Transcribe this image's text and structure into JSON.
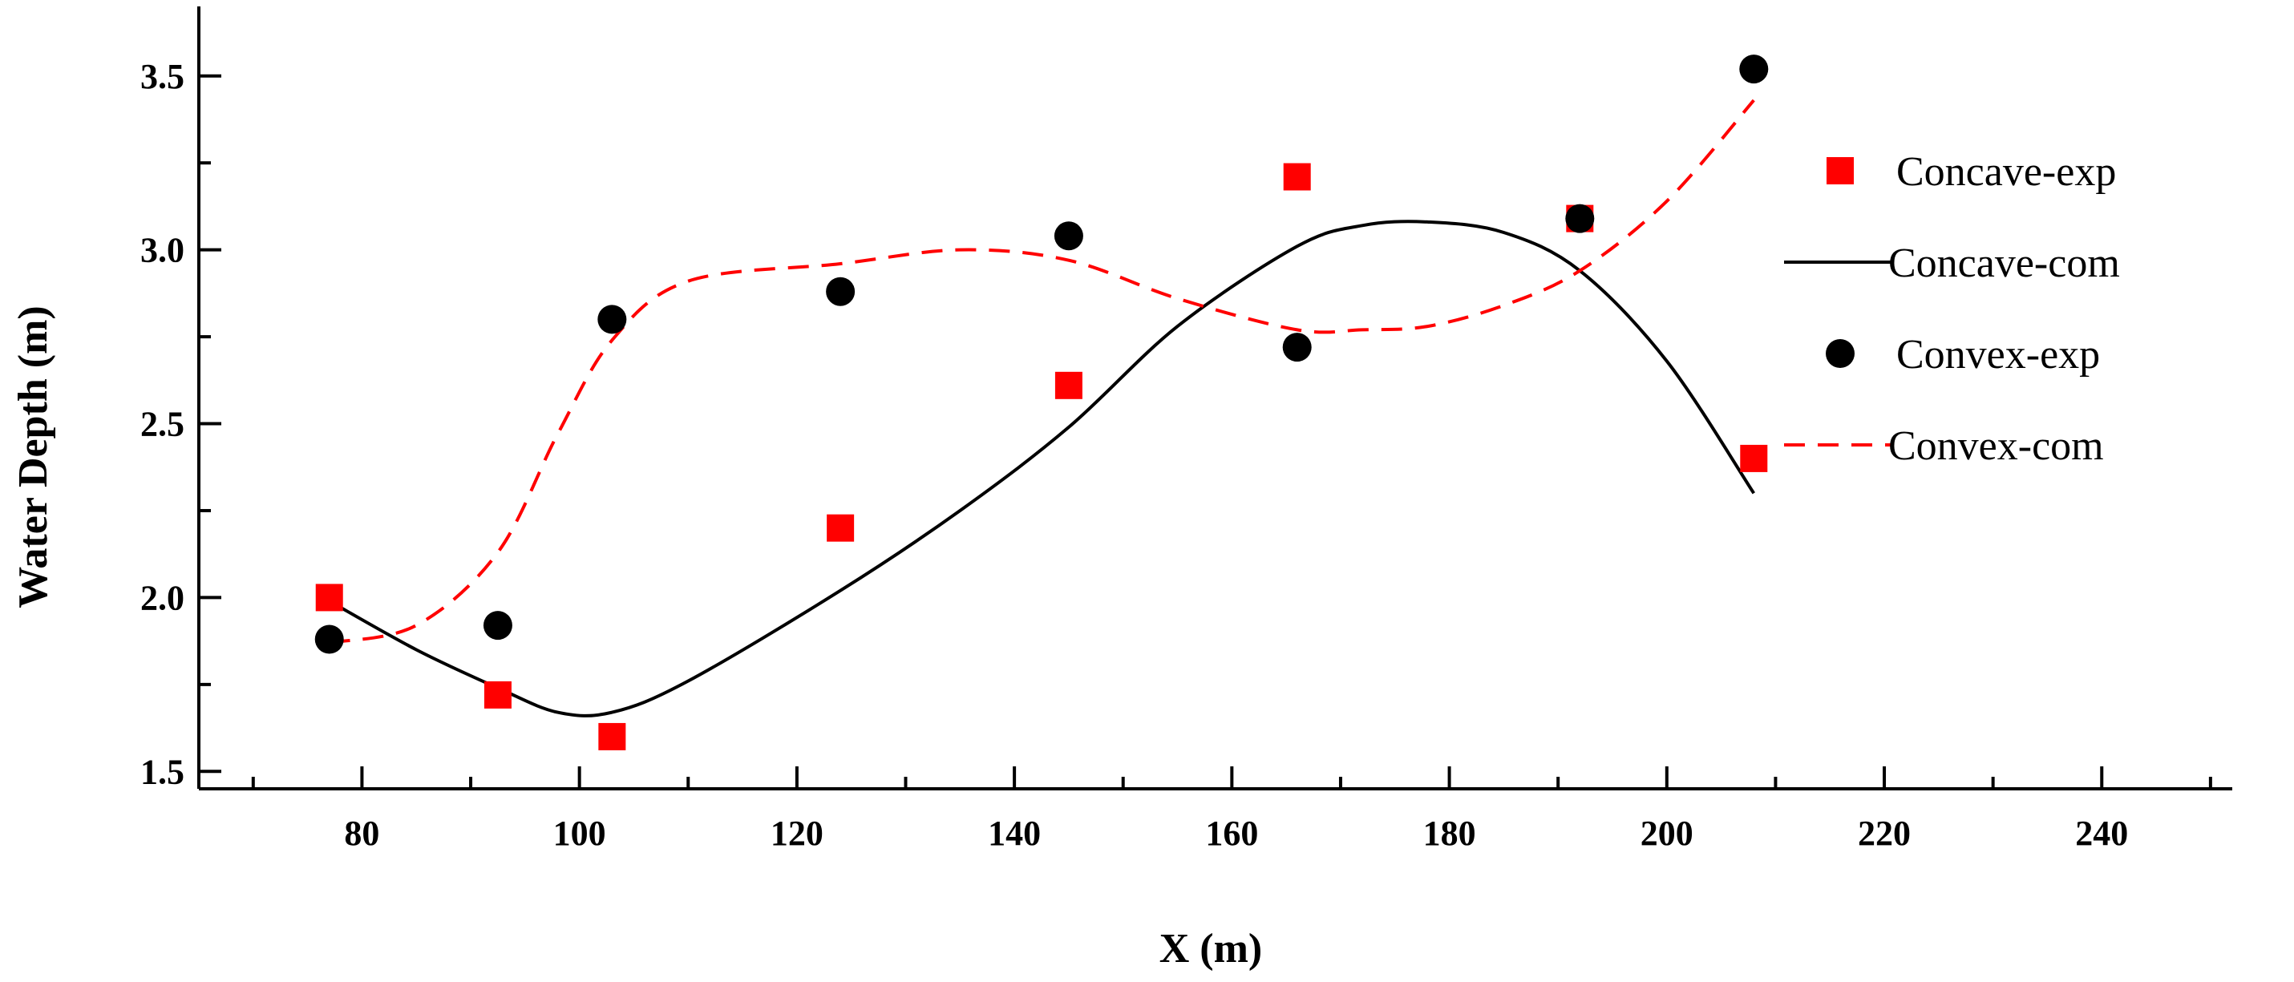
{
  "chart_data": {
    "type": "scatter",
    "title": "",
    "xlabel": "X (m)",
    "ylabel": "Water Depth (m)",
    "xlim": [
      65,
      252
    ],
    "ylim": [
      1.45,
      3.7
    ],
    "xticks": [
      80,
      100,
      120,
      140,
      160,
      180,
      200,
      220,
      240
    ],
    "xtick_labels": [
      "80",
      "100",
      "120",
      "140",
      "160",
      "180",
      "200",
      "220",
      "240"
    ],
    "x_minor_ticks": [
      70,
      90,
      110,
      130,
      150,
      170,
      190,
      210,
      230,
      250
    ],
    "yticks": [
      1.5,
      2.0,
      2.5,
      3.0,
      3.5
    ],
    "ytick_labels": [
      "1.5",
      "2.0",
      "2.5",
      "3.0",
      "3.5"
    ],
    "y_minor_ticks": [
      1.75,
      2.25,
      2.75,
      3.25
    ],
    "grid": false,
    "legend_position": "right",
    "colors": {
      "concave": "#ff0000",
      "convex_points": "#000000",
      "concave_line": "#000000",
      "convex_line": "#ff0000"
    },
    "series": [
      {
        "name": "Concave-exp",
        "kind": "scatter",
        "marker": "square",
        "color": "#ff0000",
        "x": [
          77,
          92.5,
          103,
          124,
          145,
          166,
          192,
          208
        ],
        "y": [
          2.0,
          1.72,
          1.6,
          2.2,
          2.61,
          3.21,
          3.09,
          2.4
        ]
      },
      {
        "name": "Concave-com",
        "kind": "line",
        "dash": "solid",
        "color": "#000000",
        "x": [
          77,
          85,
          92.5,
          98,
          103,
          110,
          124,
          135,
          145,
          155,
          166,
          172,
          178,
          185,
          192,
          200,
          208
        ],
        "y": [
          1.99,
          1.85,
          1.74,
          1.67,
          1.67,
          1.76,
          2.02,
          2.25,
          2.49,
          2.78,
          3.01,
          3.07,
          3.08,
          3.05,
          2.94,
          2.68,
          2.3
        ]
      },
      {
        "name": "Convex-exp",
        "kind": "scatter",
        "marker": "circle",
        "color": "#000000",
        "x": [
          77,
          92.5,
          103,
          124,
          145,
          166,
          192,
          208
        ],
        "y": [
          1.88,
          1.92,
          2.8,
          2.88,
          3.04,
          2.72,
          3.09,
          3.52
        ]
      },
      {
        "name": "Convex-com",
        "kind": "line",
        "dash": "dashed",
        "color": "#ff0000",
        "x": [
          77,
          85,
          92.5,
          98,
          103,
          110,
          124,
          135,
          145,
          155,
          166,
          172,
          178,
          185,
          192,
          200,
          208
        ],
        "y": [
          1.87,
          1.92,
          2.13,
          2.47,
          2.74,
          2.91,
          2.96,
          3.0,
          2.97,
          2.86,
          2.77,
          2.77,
          2.78,
          2.84,
          2.94,
          3.14,
          3.43
        ]
      }
    ]
  }
}
